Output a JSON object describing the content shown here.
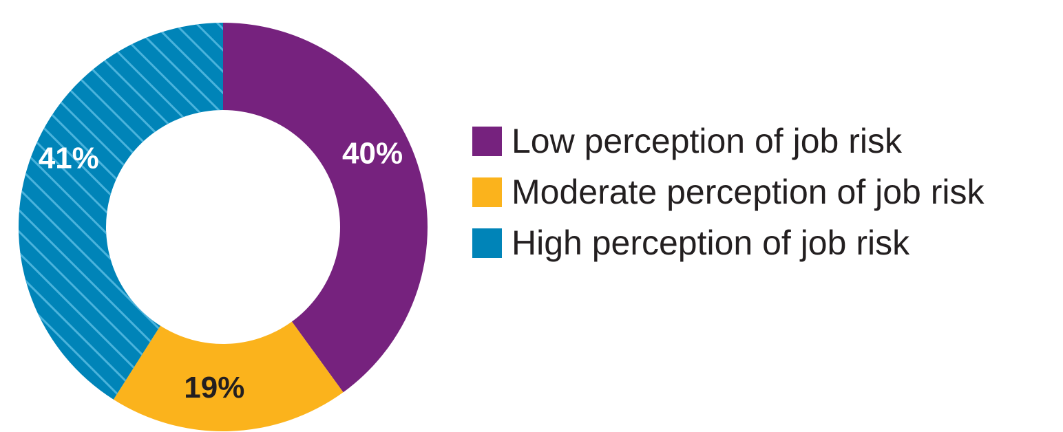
{
  "chart_data": {
    "type": "pie",
    "variant": "donut",
    "categories": [
      "Low perception of job risk",
      "Moderate perception of job risk",
      "High perception of job risk"
    ],
    "values": [
      40,
      19,
      41
    ],
    "value_labels": [
      "40%",
      "19%",
      "41%"
    ],
    "colors": [
      "#76227e",
      "#fbb31c",
      "#0084b8"
    ],
    "label_colors": [
      "#ffffff",
      "#231f20",
      "#ffffff"
    ],
    "hatched": [
      false,
      false,
      true
    ],
    "legend_position": "right"
  }
}
